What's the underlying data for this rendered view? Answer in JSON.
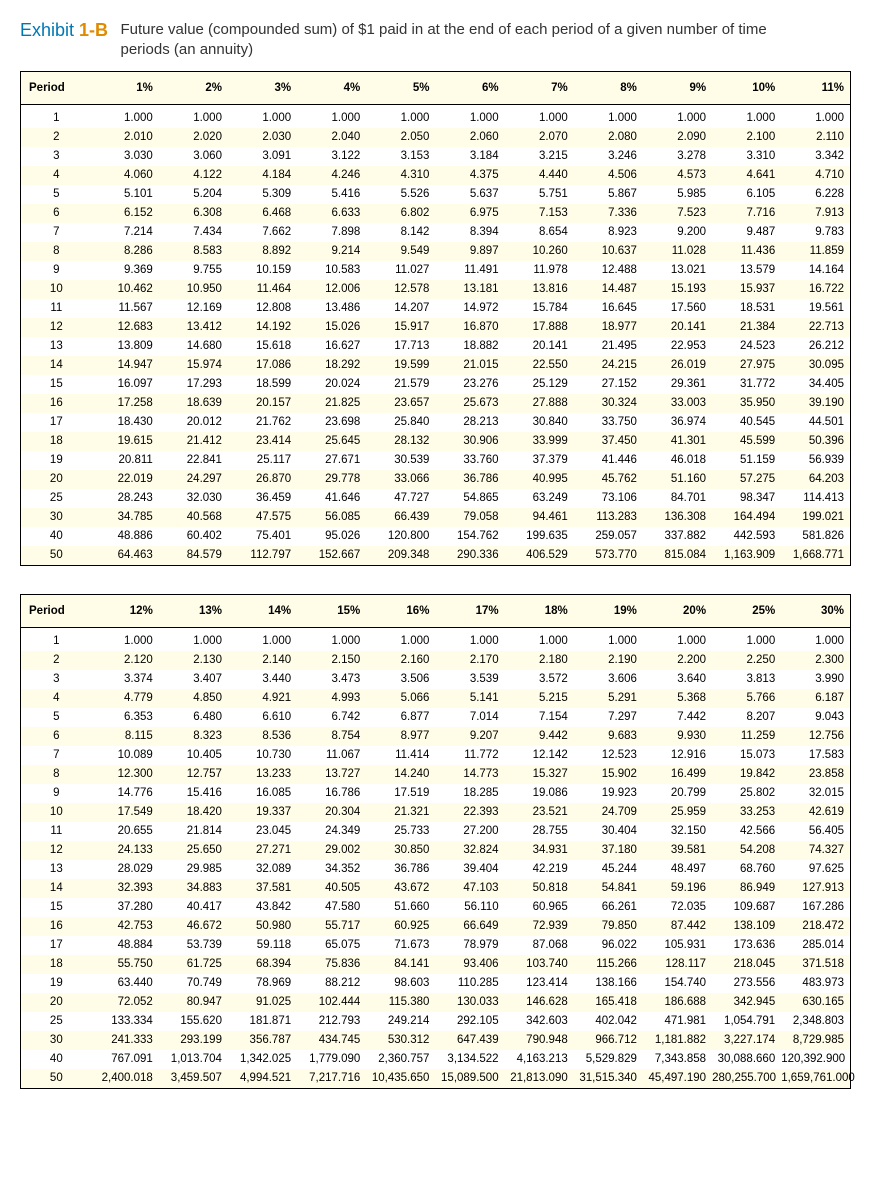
{
  "exhibit": {
    "label_prefix": "Exhibit ",
    "label_number": "1-B",
    "description": "Future value (compounded sum) of $1 paid in at the end of each period of a given number of time periods (an annuity)"
  },
  "colors": {
    "alt_row": "#fffde7",
    "border": "#000000",
    "header_blue": "#0077b3",
    "header_orange": "#e08a00"
  },
  "table1": {
    "columns": [
      "Period",
      "1%",
      "2%",
      "3%",
      "4%",
      "5%",
      "6%",
      "7%",
      "8%",
      "9%",
      "10%",
      "11%"
    ],
    "rows": [
      [
        "1",
        "1.000",
        "1.000",
        "1.000",
        "1.000",
        "1.000",
        "1.000",
        "1.000",
        "1.000",
        "1.000",
        "1.000",
        "1.000"
      ],
      [
        "2",
        "2.010",
        "2.020",
        "2.030",
        "2.040",
        "2.050",
        "2.060",
        "2.070",
        "2.080",
        "2.090",
        "2.100",
        "2.110"
      ],
      [
        "3",
        "3.030",
        "3.060",
        "3.091",
        "3.122",
        "3.153",
        "3.184",
        "3.215",
        "3.246",
        "3.278",
        "3.310",
        "3.342"
      ],
      [
        "4",
        "4.060",
        "4.122",
        "4.184",
        "4.246",
        "4.310",
        "4.375",
        "4.440",
        "4.506",
        "4.573",
        "4.641",
        "4.710"
      ],
      [
        "5",
        "5.101",
        "5.204",
        "5.309",
        "5.416",
        "5.526",
        "5.637",
        "5.751",
        "5.867",
        "5.985",
        "6.105",
        "6.228"
      ],
      [
        "6",
        "6.152",
        "6.308",
        "6.468",
        "6.633",
        "6.802",
        "6.975",
        "7.153",
        "7.336",
        "7.523",
        "7.716",
        "7.913"
      ],
      [
        "7",
        "7.214",
        "7.434",
        "7.662",
        "7.898",
        "8.142",
        "8.394",
        "8.654",
        "8.923",
        "9.200",
        "9.487",
        "9.783"
      ],
      [
        "8",
        "8.286",
        "8.583",
        "8.892",
        "9.214",
        "9.549",
        "9.897",
        "10.260",
        "10.637",
        "11.028",
        "11.436",
        "11.859"
      ],
      [
        "9",
        "9.369",
        "9.755",
        "10.159",
        "10.583",
        "11.027",
        "11.491",
        "11.978",
        "12.488",
        "13.021",
        "13.579",
        "14.164"
      ],
      [
        "10",
        "10.462",
        "10.950",
        "11.464",
        "12.006",
        "12.578",
        "13.181",
        "13.816",
        "14.487",
        "15.193",
        "15.937",
        "16.722"
      ],
      [
        "11",
        "11.567",
        "12.169",
        "12.808",
        "13.486",
        "14.207",
        "14.972",
        "15.784",
        "16.645",
        "17.560",
        "18.531",
        "19.561"
      ],
      [
        "12",
        "12.683",
        "13.412",
        "14.192",
        "15.026",
        "15.917",
        "16.870",
        "17.888",
        "18.977",
        "20.141",
        "21.384",
        "22.713"
      ],
      [
        "13",
        "13.809",
        "14.680",
        "15.618",
        "16.627",
        "17.713",
        "18.882",
        "20.141",
        "21.495",
        "22.953",
        "24.523",
        "26.212"
      ],
      [
        "14",
        "14.947",
        "15.974",
        "17.086",
        "18.292",
        "19.599",
        "21.015",
        "22.550",
        "24.215",
        "26.019",
        "27.975",
        "30.095"
      ],
      [
        "15",
        "16.097",
        "17.293",
        "18.599",
        "20.024",
        "21.579",
        "23.276",
        "25.129",
        "27.152",
        "29.361",
        "31.772",
        "34.405"
      ],
      [
        "16",
        "17.258",
        "18.639",
        "20.157",
        "21.825",
        "23.657",
        "25.673",
        "27.888",
        "30.324",
        "33.003",
        "35.950",
        "39.190"
      ],
      [
        "17",
        "18.430",
        "20.012",
        "21.762",
        "23.698",
        "25.840",
        "28.213",
        "30.840",
        "33.750",
        "36.974",
        "40.545",
        "44.501"
      ],
      [
        "18",
        "19.615",
        "21.412",
        "23.414",
        "25.645",
        "28.132",
        "30.906",
        "33.999",
        "37.450",
        "41.301",
        "45.599",
        "50.396"
      ],
      [
        "19",
        "20.811",
        "22.841",
        "25.117",
        "27.671",
        "30.539",
        "33.760",
        "37.379",
        "41.446",
        "46.018",
        "51.159",
        "56.939"
      ],
      [
        "20",
        "22.019",
        "24.297",
        "26.870",
        "29.778",
        "33.066",
        "36.786",
        "40.995",
        "45.762",
        "51.160",
        "57.275",
        "64.203"
      ],
      [
        "25",
        "28.243",
        "32.030",
        "36.459",
        "41.646",
        "47.727",
        "54.865",
        "63.249",
        "73.106",
        "84.701",
        "98.347",
        "114.413"
      ],
      [
        "30",
        "34.785",
        "40.568",
        "47.575",
        "56.085",
        "66.439",
        "79.058",
        "94.461",
        "113.283",
        "136.308",
        "164.494",
        "199.021"
      ],
      [
        "40",
        "48.886",
        "60.402",
        "75.401",
        "95.026",
        "120.800",
        "154.762",
        "199.635",
        "259.057",
        "337.882",
        "442.593",
        "581.826"
      ],
      [
        "50",
        "64.463",
        "84.579",
        "112.797",
        "152.667",
        "209.348",
        "290.336",
        "406.529",
        "573.770",
        "815.084",
        "1,163.909",
        "1,668.771"
      ]
    ]
  },
  "table2": {
    "columns": [
      "Period",
      "12%",
      "13%",
      "14%",
      "15%",
      "16%",
      "17%",
      "18%",
      "19%",
      "20%",
      "25%",
      "30%"
    ],
    "rows": [
      [
        "1",
        "1.000",
        "1.000",
        "1.000",
        "1.000",
        "1.000",
        "1.000",
        "1.000",
        "1.000",
        "1.000",
        "1.000",
        "1.000"
      ],
      [
        "2",
        "2.120",
        "2.130",
        "2.140",
        "2.150",
        "2.160",
        "2.170",
        "2.180",
        "2.190",
        "2.200",
        "2.250",
        "2.300"
      ],
      [
        "3",
        "3.374",
        "3.407",
        "3.440",
        "3.473",
        "3.506",
        "3.539",
        "3.572",
        "3.606",
        "3.640",
        "3.813",
        "3.990"
      ],
      [
        "4",
        "4.779",
        "4.850",
        "4.921",
        "4.993",
        "5.066",
        "5.141",
        "5.215",
        "5.291",
        "5.368",
        "5.766",
        "6.187"
      ],
      [
        "5",
        "6.353",
        "6.480",
        "6.610",
        "6.742",
        "6.877",
        "7.014",
        "7.154",
        "7.297",
        "7.442",
        "8.207",
        "9.043"
      ],
      [
        "6",
        "8.115",
        "8.323",
        "8.536",
        "8.754",
        "8.977",
        "9.207",
        "9.442",
        "9.683",
        "9.930",
        "11.259",
        "12.756"
      ],
      [
        "7",
        "10.089",
        "10.405",
        "10.730",
        "11.067",
        "11.414",
        "11.772",
        "12.142",
        "12.523",
        "12.916",
        "15.073",
        "17.583"
      ],
      [
        "8",
        "12.300",
        "12.757",
        "13.233",
        "13.727",
        "14.240",
        "14.773",
        "15.327",
        "15.902",
        "16.499",
        "19.842",
        "23.858"
      ],
      [
        "9",
        "14.776",
        "15.416",
        "16.085",
        "16.786",
        "17.519",
        "18.285",
        "19.086",
        "19.923",
        "20.799",
        "25.802",
        "32.015"
      ],
      [
        "10",
        "17.549",
        "18.420",
        "19.337",
        "20.304",
        "21.321",
        "22.393",
        "23.521",
        "24.709",
        "25.959",
        "33.253",
        "42.619"
      ],
      [
        "11",
        "20.655",
        "21.814",
        "23.045",
        "24.349",
        "25.733",
        "27.200",
        "28.755",
        "30.404",
        "32.150",
        "42.566",
        "56.405"
      ],
      [
        "12",
        "24.133",
        "25.650",
        "27.271",
        "29.002",
        "30.850",
        "32.824",
        "34.931",
        "37.180",
        "39.581",
        "54.208",
        "74.327"
      ],
      [
        "13",
        "28.029",
        "29.985",
        "32.089",
        "34.352",
        "36.786",
        "39.404",
        "42.219",
        "45.244",
        "48.497",
        "68.760",
        "97.625"
      ],
      [
        "14",
        "32.393",
        "34.883",
        "37.581",
        "40.505",
        "43.672",
        "47.103",
        "50.818",
        "54.841",
        "59.196",
        "86.949",
        "127.913"
      ],
      [
        "15",
        "37.280",
        "40.417",
        "43.842",
        "47.580",
        "51.660",
        "56.110",
        "60.965",
        "66.261",
        "72.035",
        "109.687",
        "167.286"
      ],
      [
        "16",
        "42.753",
        "46.672",
        "50.980",
        "55.717",
        "60.925",
        "66.649",
        "72.939",
        "79.850",
        "87.442",
        "138.109",
        "218.472"
      ],
      [
        "17",
        "48.884",
        "53.739",
        "59.118",
        "65.075",
        "71.673",
        "78.979",
        "87.068",
        "96.022",
        "105.931",
        "173.636",
        "285.014"
      ],
      [
        "18",
        "55.750",
        "61.725",
        "68.394",
        "75.836",
        "84.141",
        "93.406",
        "103.740",
        "115.266",
        "128.117",
        "218.045",
        "371.518"
      ],
      [
        "19",
        "63.440",
        "70.749",
        "78.969",
        "88.212",
        "98.603",
        "110.285",
        "123.414",
        "138.166",
        "154.740",
        "273.556",
        "483.973"
      ],
      [
        "20",
        "72.052",
        "80.947",
        "91.025",
        "102.444",
        "115.380",
        "130.033",
        "146.628",
        "165.418",
        "186.688",
        "342.945",
        "630.165"
      ],
      [
        "25",
        "133.334",
        "155.620",
        "181.871",
        "212.793",
        "249.214",
        "292.105",
        "342.603",
        "402.042",
        "471.981",
        "1,054.791",
        "2,348.803"
      ],
      [
        "30",
        "241.333",
        "293.199",
        "356.787",
        "434.745",
        "530.312",
        "647.439",
        "790.948",
        "966.712",
        "1,181.882",
        "3,227.174",
        "8,729.985"
      ],
      [
        "40",
        "767.091",
        "1,013.704",
        "1,342.025",
        "1,779.090",
        "2,360.757",
        "3,134.522",
        "4,163.213",
        "5,529.829",
        "7,343.858",
        "30,088.660",
        "120,392.900"
      ],
      [
        "50",
        "2,400.018",
        "3,459.507",
        "4,994.521",
        "7,217.716",
        "10,435.650",
        "15,089.500",
        "21,813.090",
        "31,515.340",
        "45,497.190",
        "280,255.700",
        "1,659,761.000"
      ]
    ]
  }
}
